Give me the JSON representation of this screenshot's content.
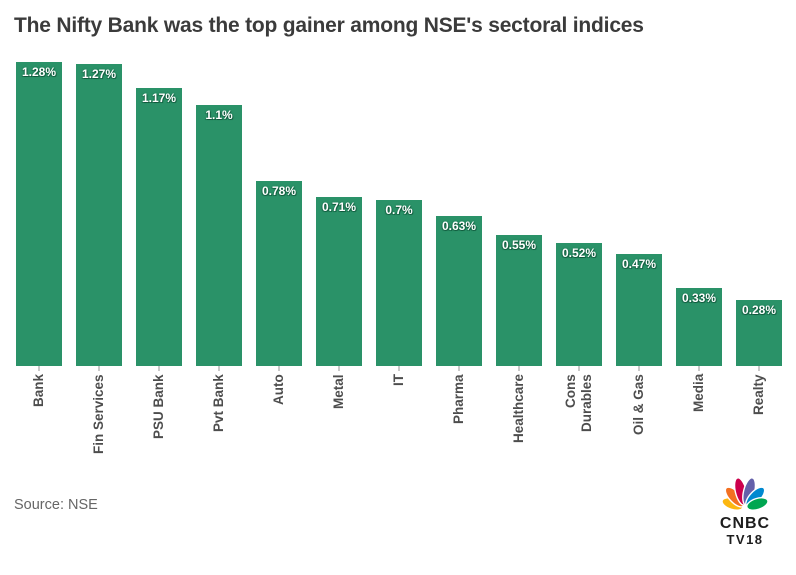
{
  "chart_data": {
    "type": "bar",
    "title": "The Nifty Bank was the top gainer among NSE's sectoral indices",
    "categories": [
      "Bank",
      "Fin Services",
      "PSU Bank",
      "Pvt Bank",
      "Auto",
      "Metal",
      "IT",
      "Pharma",
      "Healthcare",
      "Cons\nDurables",
      "Oil & Gas",
      "Media",
      "Realty"
    ],
    "values": [
      1.28,
      1.27,
      1.17,
      1.1,
      0.78,
      0.71,
      0.7,
      0.63,
      0.55,
      0.52,
      0.47,
      0.33,
      0.28
    ],
    "value_labels": [
      "1.28%",
      "1.27%",
      "1.17%",
      "1.1%",
      "0.78%",
      "0.71%",
      "0.7%",
      "0.63%",
      "0.55%",
      "0.52%",
      "0.47%",
      "0.33%",
      "0.28%"
    ],
    "xlabel": "",
    "ylabel": "",
    "ylim": [
      0,
      1.28
    ],
    "grid": false,
    "legend": false,
    "bar_color": "#2a9268",
    "value_label_color": "#ffffff",
    "axis_label_color": "#4d4d4d",
    "tick_color": "#c9c9c9"
  },
  "footer": {
    "source_label": "Source: NSE"
  },
  "logo": {
    "brand_line1": "CNBC",
    "brand_line2": "TV18",
    "feather_colors": [
      "#FCB711",
      "#F37021",
      "#CC004C",
      "#6460AA",
      "#0089D0",
      "#00A651"
    ]
  }
}
